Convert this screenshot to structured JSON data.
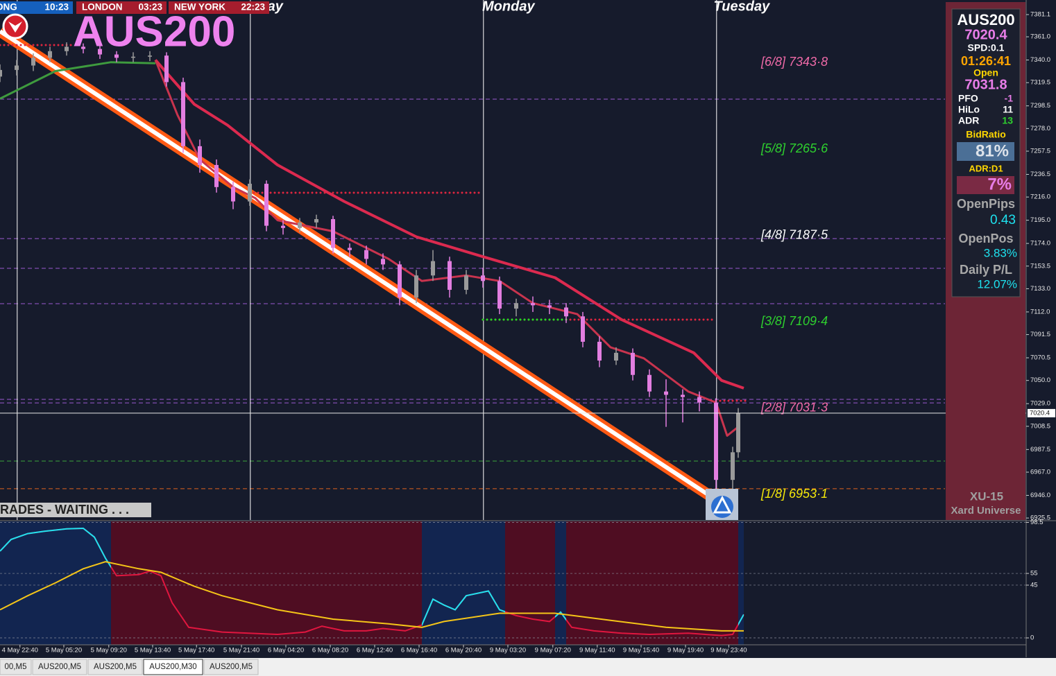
{
  "tabs": [
    "00,M5",
    "AUS200,M5",
    "AUS200,M5",
    "AUS200,M30",
    "AUS200,M5"
  ],
  "active_tab": 3,
  "clocks": [
    {
      "city": "G KONG",
      "time": "10:23",
      "color": "#1560bd"
    },
    {
      "city": "LONDON",
      "time": "03:23",
      "color": "#a51d2d"
    },
    {
      "city": "NEW YORK",
      "time": "22:23",
      "color": "#a51d2d"
    }
  ],
  "status": "RADES - WAITING . . .",
  "info_panel": {
    "symbol": "AUS200",
    "bid": "7020.4",
    "spread": "SPD:0.1",
    "timer": "01:26:41",
    "open_label": "Open",
    "open": "7031.8",
    "rows": [
      [
        "PFO",
        "-1"
      ],
      [
        "HiLo",
        "11"
      ],
      [
        "ADR",
        "13"
      ]
    ],
    "bid_ratio_label": "BidRatio",
    "bid_ratio": "81%",
    "adr_label": "ADR:D1",
    "adr": "7%",
    "open_pips_label": "OpenPips",
    "open_pips": "0.43",
    "open_pos_label": "OpenPos",
    "open_pos": "3.83%",
    "daily_pl_label": "Daily P/L",
    "daily_pl": "12.07%",
    "brand": "XU-15",
    "brand_sub": "Xard Universe"
  },
  "chart_data": [
    {
      "type": "candlestick",
      "title": "AUS200",
      "x": [
        0,
        3,
        6,
        9,
        12,
        15,
        18,
        21,
        24,
        27,
        30,
        33,
        36,
        39,
        42,
        45,
        48,
        51,
        54,
        57,
        60,
        63,
        66,
        69,
        72,
        75,
        78,
        81,
        84,
        87,
        90,
        93,
        96,
        99,
        102,
        105,
        108,
        111,
        114,
        117,
        120,
        123,
        126,
        129,
        132,
        133
      ],
      "open": [
        7325,
        7331,
        7335,
        7342,
        7348,
        7352,
        7350,
        7345,
        7342,
        7343,
        7344,
        7320,
        7262,
        7245,
        7225,
        7212,
        7228,
        7190,
        7188,
        7193,
        7196,
        7170,
        7168,
        7160,
        7155,
        7125,
        7145,
        7158,
        7132,
        7145,
        7140,
        7115,
        7120,
        7118,
        7116,
        7108,
        7085,
        7068,
        7075,
        7055,
        7040,
        7037,
        7035,
        7030,
        6960,
        6985
      ],
      "high": [
        7336,
        7340,
        7346,
        7352,
        7356,
        7355,
        7353,
        7348,
        7347,
        7348,
        7347,
        7324,
        7268,
        7250,
        7230,
        7232,
        7231,
        7195,
        7197,
        7200,
        7199,
        7174,
        7172,
        7165,
        7158,
        7150,
        7168,
        7162,
        7150,
        7152,
        7144,
        7124,
        7126,
        7123,
        7120,
        7112,
        7090,
        7080,
        7079,
        7060,
        7051,
        7042,
        7040,
        7034,
        6990,
        7025
      ],
      "low": [
        7320,
        7326,
        7330,
        7338,
        7344,
        7346,
        7341,
        7338,
        7338,
        7339,
        7316,
        7256,
        7238,
        7220,
        7205,
        7208,
        7185,
        7182,
        7184,
        7188,
        7165,
        7162,
        7155,
        7150,
        7118,
        7120,
        7140,
        7125,
        7128,
        7134,
        7110,
        7108,
        7112,
        7110,
        7102,
        7080,
        7062,
        7064,
        7050,
        7035,
        7008,
        7012,
        7022,
        6942,
        6950,
        6980
      ],
      "close": [
        7331,
        7335,
        7342,
        7348,
        7352,
        7350,
        7345,
        7342,
        7343,
        7344,
        7320,
        7262,
        7245,
        7225,
        7212,
        7228,
        7190,
        7188,
        7193,
        7196,
        7170,
        7168,
        7160,
        7155,
        7125,
        7145,
        7158,
        7132,
        7145,
        7140,
        7115,
        7120,
        7118,
        7116,
        7108,
        7085,
        7068,
        7075,
        7055,
        7040,
        7037,
        7035,
        7030,
        6960,
        6985,
        7020.4
      ],
      "up_color": "#9a9a9a",
      "down_color": "#e27ee0",
      "xlim": [
        0,
        170.25
      ],
      "ylim": [
        6923.7,
        7394.3
      ],
      "yticks": [
        7381.1,
        {
          "value": 7361,
          "label": "7361.0"
        },
        {
          "value": 7340,
          "label": "7340.0"
        },
        7319.5,
        7298.5,
        {
          "value": 7278,
          "label": "7278.0"
        },
        7257.5,
        7236.5,
        {
          "value": 7216,
          "label": "7216.0"
        },
        {
          "value": 7195,
          "label": "7195.0"
        },
        {
          "value": 7174,
          "label": "7174.0"
        },
        7153.5,
        {
          "value": 7133,
          "label": "7133.0"
        },
        {
          "value": 7112,
          "label": "7112.0"
        },
        7091.5,
        7070.5,
        {
          "value": 7050,
          "label": "7050.0"
        },
        {
          "value": 7029,
          "label": "7029.0"
        },
        7008.5,
        6987.5,
        {
          "value": 6967,
          "label": "6967.0"
        },
        {
          "value": 6946,
          "label": "6946.0"
        },
        6925.5
      ],
      "xticks": [
        {
          "value": 3.6,
          "label": "4 May 22:40"
        },
        {
          "value": 11.5,
          "label": "5 May 05:20"
        },
        {
          "value": 19.6,
          "label": "5 May 09:20"
        },
        {
          "value": 27.5,
          "label": "5 May 13:40"
        },
        {
          "value": 35.4,
          "label": "5 May 17:40"
        },
        {
          "value": 43.5,
          "label": "5 May 21:40"
        },
        {
          "value": 51.5,
          "label": "6 May 04:20"
        },
        {
          "value": 59.5,
          "label": "6 May 08:20"
        },
        {
          "value": 67.5,
          "label": "6 May 12:40"
        },
        {
          "value": 75.5,
          "label": "6 May 16:40"
        },
        {
          "value": 83.5,
          "label": "6 May 20:40"
        },
        {
          "value": 91.5,
          "label": "9 May 03:20"
        },
        {
          "value": 99.6,
          "label": "9 May 07:20"
        },
        {
          "value": 107.6,
          "label": "9 May 11:40"
        },
        {
          "value": 115.5,
          "label": "9 May 15:40"
        },
        {
          "value": 123.5,
          "label": "9 May 19:40"
        },
        {
          "value": 131.3,
          "label": "9 May 23:40"
        }
      ],
      "current_price": 7020.4,
      "levels": [
        {
          "value": 7343.8,
          "label": "[6/8] 7343·8",
          "color": "#f06aa8"
        },
        {
          "value": 7265.6,
          "label": "[5/8] 7265·6",
          "color": "#2ed12e"
        },
        {
          "value": 7187.5,
          "label": "[4/8] 7187·5",
          "color": "#ffffff"
        },
        {
          "value": 7109.4,
          "label": "[3/8] 7109·4",
          "color": "#2ed12e"
        },
        {
          "value": 7031.3,
          "label": "[2/8] 7031·3",
          "color": "#f06aa8"
        },
        {
          "value": 6953.1,
          "label": "[1/8] 6953·1",
          "color": "#f5e90a"
        }
      ],
      "dashed_levels": [
        {
          "value": 7304.6,
          "color": "#9b59d0"
        },
        {
          "value": 7178.4,
          "color": "#9b59d0"
        },
        {
          "value": 7151.5,
          "color": "#9b59d0"
        },
        {
          "value": 7119.5,
          "color": "#9b59d0"
        },
        {
          "value": 7032.9,
          "color": "#9b59d0"
        },
        {
          "value": 7029.7,
          "color": "#9b59d0"
        },
        {
          "value": 6977,
          "color": "#3aa43a"
        },
        {
          "value": 6952,
          "color": "#e0621e"
        }
      ],
      "dotted_levels": [
        {
          "value": 7353.5,
          "from": 0,
          "to": 13,
          "color": "#e0263f"
        },
        {
          "value": 7219.9,
          "from": 45,
          "to": 86.5,
          "color": "#e0263f"
        },
        {
          "value": 7219.9,
          "from": 45,
          "to": 45.6,
          "color": "#22dd22"
        },
        {
          "value": 7105,
          "from": 87,
          "to": 128.5,
          "color": "#e0263f"
        },
        {
          "value": 7105,
          "from": 87,
          "to": 102.5,
          "color": "#22dd22"
        },
        {
          "value": 7031.6,
          "from": 129,
          "to": 134.5,
          "color": "#e0263f"
        }
      ],
      "overlays": [
        {
          "color": "#3e9b3e",
          "width": 3,
          "x": [
            0,
            10,
            20,
            28
          ],
          "values": [
            7305,
            7330,
            7338,
            7337
          ]
        },
        {
          "color": "#dc2a4f",
          "width": 4,
          "x": [
            28,
            35,
            41,
            50,
            62,
            75,
            87,
            100,
            112,
            125,
            130,
            134
          ],
          "values": [
            7340,
            7300,
            7281,
            7245,
            7212,
            7180,
            7162,
            7143,
            7105,
            7075,
            7050,
            7043
          ]
        },
        {
          "color": "#c8344e",
          "width": 3,
          "x": [
            28,
            32,
            36,
            42,
            46,
            50,
            60,
            70,
            76,
            84,
            90,
            96,
            104,
            110,
            116,
            124,
            129,
            131,
            133
          ],
          "values": [
            7340,
            7290,
            7250,
            7225,
            7215,
            7195,
            7185,
            7160,
            7140,
            7145,
            7140,
            7120,
            7110,
            7080,
            7070,
            7040,
            7030,
            7000,
            7008
          ]
        }
      ],
      "trendline": {
        "x": [
          0,
          129
        ],
        "values": [
          7366,
          6942
        ],
        "color": "#ff5a14"
      },
      "sessions": [
        {
          "x": 3.1
        },
        {
          "x": 45.1,
          "label": "ay"
        },
        {
          "x": 87.1,
          "label": "Monday"
        },
        {
          "x": 129.1,
          "label": "Tuesday"
        }
      ]
    },
    {
      "type": "line",
      "xlim": [
        0,
        170.25
      ],
      "ylim": [
        -5.9,
        99.4
      ],
      "yticks": [
        98.5,
        55,
        45,
        0
      ],
      "zone_colors": {
        "up": "#122550",
        "down": "#4f0d22"
      },
      "zones": [
        {
          "from": 0,
          "to": 20,
          "state": "up"
        },
        {
          "from": 20,
          "to": 76,
          "state": "down"
        },
        {
          "from": 76,
          "to": 91,
          "state": "up"
        },
        {
          "from": 91,
          "to": 100,
          "state": "down"
        },
        {
          "from": 100,
          "to": 102,
          "state": "up"
        },
        {
          "from": 102,
          "to": 133,
          "state": "down"
        },
        {
          "from": 133,
          "to": 134,
          "state": "up"
        }
      ],
      "series": [
        {
          "color": "#e0163f",
          "up_color": "#1ee3f0",
          "x": [
            0,
            2,
            5,
            8,
            12,
            15,
            17,
            19,
            21,
            25,
            27,
            29,
            31,
            34,
            40,
            50,
            55,
            58,
            62,
            66,
            69,
            73,
            76,
            78,
            80,
            82,
            84,
            88,
            90,
            93,
            96,
            99,
            101,
            103,
            107,
            112,
            117,
            124,
            130,
            132,
            134
          ],
          "values": [
            74,
            84,
            89,
            91,
            93,
            93.5,
            86,
            68,
            53,
            54,
            57,
            53,
            30,
            9,
            5,
            3,
            5,
            10,
            6,
            6,
            8,
            6,
            11,
            33,
            28,
            24,
            36,
            40,
            24,
            19,
            16,
            14,
            22,
            9,
            6,
            4,
            3,
            4,
            2,
            3,
            20
          ]
        },
        {
          "color": "#f5c518",
          "x": [
            0,
            5,
            10,
            15,
            19,
            25,
            29,
            35,
            40,
            50,
            60,
            70,
            76,
            80,
            90,
            100,
            110,
            120,
            130,
            134
          ],
          "values": [
            24,
            36,
            47,
            59,
            65,
            59,
            56,
            44,
            36,
            24,
            16,
            12,
            9,
            14,
            21,
            21,
            15,
            9,
            6,
            6
          ]
        }
      ]
    }
  ]
}
